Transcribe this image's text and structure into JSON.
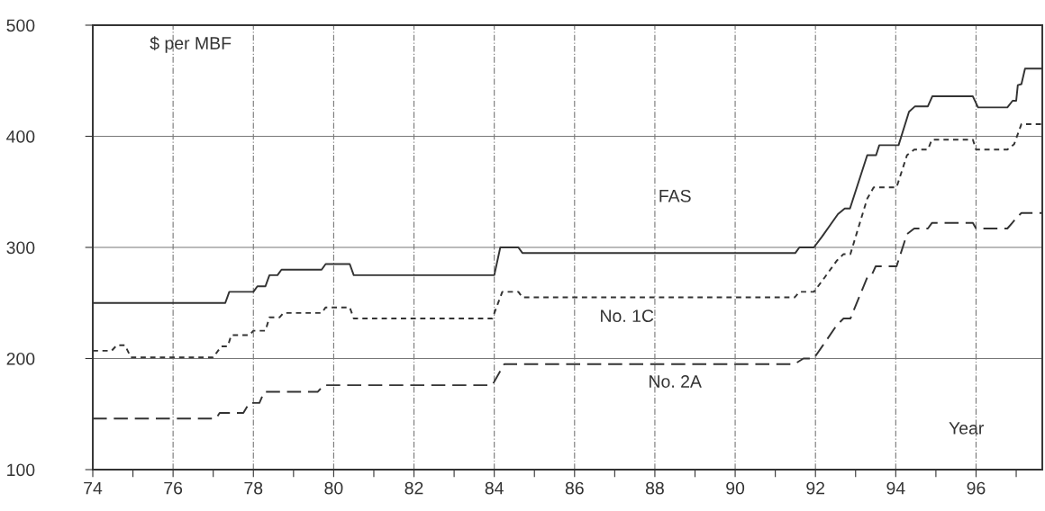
{
  "chart_data": {
    "type": "line",
    "ylabel": "$ per MBF",
    "xlabel": "Year",
    "xlim": [
      74,
      97.65
    ],
    "ylim": [
      100,
      500
    ],
    "xticks": [
      74,
      {
        "value": 75,
        "label": null
      },
      76,
      {
        "value": 77,
        "label": null
      },
      78,
      {
        "value": 79,
        "label": null
      },
      80,
      {
        "value": 81,
        "label": null
      },
      82,
      {
        "value": 83,
        "label": null
      },
      84,
      {
        "value": 85,
        "label": null
      },
      86,
      {
        "value": 87,
        "label": null
      },
      88,
      {
        "value": 89,
        "label": null
      },
      90,
      {
        "value": 91,
        "label": null
      },
      92,
      {
        "value": 93,
        "label": null
      },
      94,
      {
        "value": 95,
        "label": null
      },
      96,
      {
        "value": 97,
        "label": null
      }
    ],
    "yticks": [
      100,
      200,
      300,
      400,
      500
    ],
    "grid": true,
    "legend": false,
    "marker": "none",
    "series": [
      {
        "name": "FAS",
        "color": "#333333",
        "line_style": "solid",
        "x": [
          74,
          77.3,
          77.4,
          78.0,
          78.1,
          78.3,
          78.4,
          78.6,
          78.7,
          79.7,
          79.8,
          80.4,
          80.5,
          84.0,
          84.15,
          84.6,
          84.7,
          91.5,
          91.6,
          91.96,
          92.17,
          92.56,
          92.73,
          92.86,
          93.29,
          93.51,
          93.59,
          94.07,
          94.33,
          94.48,
          94.8,
          94.91,
          95.92,
          96.05,
          96.78,
          96.91,
          97.0,
          97.04,
          97.13,
          97.22,
          97.65
        ],
        "values": [
          250,
          250,
          260,
          260,
          265,
          265,
          275,
          275,
          280,
          280,
          285,
          285,
          275,
          275,
          300,
          300,
          295,
          295,
          300,
          300,
          310,
          330,
          335,
          335,
          383,
          383,
          392,
          392,
          422,
          427,
          427,
          436,
          436,
          426,
          426,
          432,
          432,
          446,
          447,
          461,
          461
        ]
      },
      {
        "name": "No. 1C",
        "color": "#333333",
        "line_style": "dotted",
        "x": [
          74,
          74.47,
          74.6,
          74.8,
          74.95,
          77.0,
          77.2,
          77.36,
          77.45,
          77.9,
          78.0,
          78.3,
          78.4,
          78.65,
          78.75,
          79.7,
          79.8,
          80.4,
          80.5,
          83.95,
          84.2,
          84.6,
          84.7,
          91.48,
          91.6,
          91.96,
          92.17,
          92.53,
          92.7,
          92.87,
          93.29,
          93.45,
          94.02,
          94.28,
          94.46,
          94.8,
          94.9,
          95.92,
          96.0,
          96.78,
          96.95,
          97.13,
          97.65
        ],
        "values": [
          207,
          207,
          212,
          212,
          201,
          201,
          211,
          211,
          221,
          221,
          225,
          225,
          237,
          237,
          241,
          241,
          246,
          246,
          236,
          236,
          260,
          260,
          255,
          255,
          260,
          260,
          270,
          288,
          294,
          294,
          344,
          354,
          354,
          383,
          388,
          388,
          397,
          397,
          388,
          388,
          393,
          411,
          411
        ]
      },
      {
        "name": "No. 2A",
        "color": "#333333",
        "line_style": "dashed",
        "x": [
          74,
          77.07,
          77.16,
          77.75,
          77.9,
          78.15,
          78.27,
          79.6,
          79.76,
          83.95,
          84.25,
          91.48,
          91.7,
          91.96,
          92.17,
          92.53,
          92.7,
          92.87,
          93.29,
          93.4,
          93.5,
          94.02,
          94.28,
          94.46,
          94.8,
          94.9,
          95.92,
          96.0,
          96.78,
          96.9,
          97.04,
          97.13,
          97.65
        ],
        "values": [
          146,
          146,
          151,
          151,
          160,
          160,
          170,
          170,
          176,
          176,
          195,
          195,
          200,
          200,
          211,
          230,
          236,
          236,
          273,
          275,
          283,
          283,
          312,
          317,
          317,
          322,
          322,
          317,
          317,
          322,
          328,
          331,
          331
        ]
      }
    ]
  }
}
